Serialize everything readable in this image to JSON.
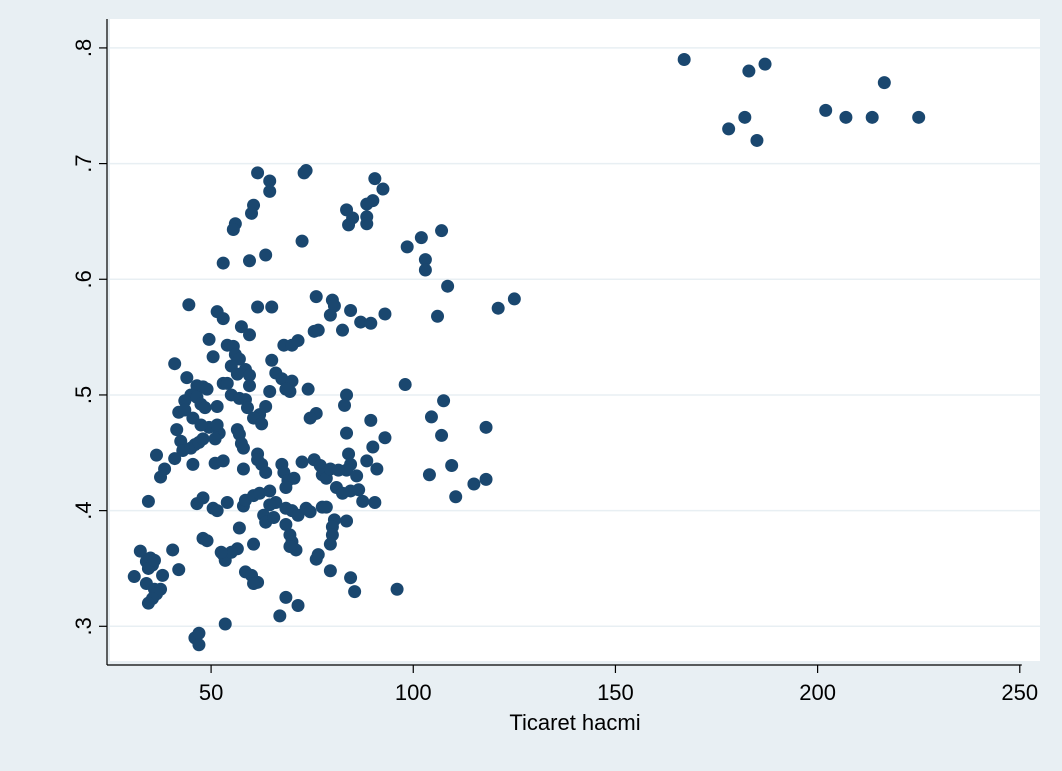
{
  "chart_data": {
    "type": "scatter",
    "title": "",
    "xlabel": "Ticaret hacmi",
    "ylabel": "",
    "xlim": [
      25,
      255
    ],
    "ylim": [
      0.27,
      0.825
    ],
    "x_ticks": [
      50,
      100,
      150,
      200,
      250
    ],
    "x_tick_labels": [
      "50",
      "100",
      "150",
      "200",
      "250"
    ],
    "y_ticks": [
      0.3,
      0.4,
      0.5,
      0.6,
      0.7,
      0.8
    ],
    "y_tick_labels": [
      ".3",
      ".4",
      ".5",
      ".6",
      ".7",
      ".8"
    ],
    "grid": true,
    "colors": {
      "background": "#e8eff3",
      "plot_area": "#ffffff",
      "marker": "#1a476f",
      "grid": "#e8eff3"
    },
    "series": [
      {
        "points": [
          [
            167,
            0.79
          ],
          [
            183,
            0.78
          ],
          [
            187,
            0.786
          ],
          [
            216.5,
            0.77
          ],
          [
            178,
            0.73
          ],
          [
            182,
            0.74
          ],
          [
            185,
            0.72
          ],
          [
            202,
            0.746
          ],
          [
            207,
            0.74
          ],
          [
            213.5,
            0.74
          ],
          [
            225,
            0.74
          ],
          [
            61.5,
            0.692
          ],
          [
            73.5,
            0.694
          ],
          [
            73,
            0.692
          ],
          [
            64.5,
            0.685
          ],
          [
            64.5,
            0.676
          ],
          [
            60.5,
            0.664
          ],
          [
            60,
            0.657
          ],
          [
            56,
            0.648
          ],
          [
            55.5,
            0.643
          ],
          [
            72.5,
            0.633
          ],
          [
            59.5,
            0.616
          ],
          [
            63.5,
            0.621
          ],
          [
            53,
            0.614
          ],
          [
            90.5,
            0.687
          ],
          [
            92.5,
            0.678
          ],
          [
            90,
            0.668
          ],
          [
            88.5,
            0.665
          ],
          [
            88.5,
            0.654
          ],
          [
            88.5,
            0.648
          ],
          [
            83.5,
            0.66
          ],
          [
            85,
            0.653
          ],
          [
            84,
            0.647
          ],
          [
            98.5,
            0.628
          ],
          [
            102,
            0.636
          ],
          [
            103,
            0.617
          ],
          [
            103,
            0.608
          ],
          [
            107,
            0.642
          ],
          [
            108.5,
            0.594
          ],
          [
            121,
            0.575
          ],
          [
            125,
            0.583
          ],
          [
            106,
            0.568
          ],
          [
            44.5,
            0.578
          ],
          [
            51.5,
            0.572
          ],
          [
            53,
            0.566
          ],
          [
            57.5,
            0.559
          ],
          [
            59.5,
            0.552
          ],
          [
            61.5,
            0.576
          ],
          [
            65,
            0.576
          ],
          [
            76,
            0.585
          ],
          [
            80,
            0.582
          ],
          [
            80.5,
            0.577
          ],
          [
            84.5,
            0.573
          ],
          [
            79.5,
            0.569
          ],
          [
            87,
            0.563
          ],
          [
            89.5,
            0.562
          ],
          [
            93,
            0.57
          ],
          [
            75.5,
            0.555
          ],
          [
            76.5,
            0.556
          ],
          [
            82.5,
            0.556
          ],
          [
            68,
            0.543
          ],
          [
            70,
            0.543
          ],
          [
            71.5,
            0.547
          ],
          [
            49.5,
            0.548
          ],
          [
            54,
            0.543
          ],
          [
            55.5,
            0.542
          ],
          [
            56,
            0.535
          ],
          [
            57,
            0.531
          ],
          [
            50.5,
            0.533
          ],
          [
            41,
            0.527
          ],
          [
            55,
            0.525
          ],
          [
            58.5,
            0.522
          ],
          [
            56.5,
            0.518
          ],
          [
            59.5,
            0.517
          ],
          [
            65,
            0.53
          ],
          [
            66,
            0.519
          ],
          [
            67.5,
            0.514
          ],
          [
            70,
            0.512
          ],
          [
            74,
            0.505
          ],
          [
            69.5,
            0.503
          ],
          [
            68.5,
            0.505
          ],
          [
            64.5,
            0.503
          ],
          [
            44,
            0.515
          ],
          [
            46.5,
            0.508
          ],
          [
            48,
            0.507
          ],
          [
            49,
            0.505
          ],
          [
            45,
            0.5
          ],
          [
            43.5,
            0.495
          ],
          [
            46.5,
            0.498
          ],
          [
            47.5,
            0.492
          ],
          [
            48.5,
            0.489
          ],
          [
            51.5,
            0.49
          ],
          [
            53,
            0.51
          ],
          [
            54,
            0.51
          ],
          [
            55,
            0.5
          ],
          [
            57,
            0.497
          ],
          [
            58.5,
            0.496
          ],
          [
            59,
            0.489
          ],
          [
            59.5,
            0.508
          ],
          [
            62,
            0.483
          ],
          [
            63.5,
            0.49
          ],
          [
            60.5,
            0.48
          ],
          [
            62.5,
            0.475
          ],
          [
            56.5,
            0.47
          ],
          [
            57,
            0.466
          ],
          [
            57.5,
            0.458
          ],
          [
            58,
            0.454
          ],
          [
            52,
            0.467
          ],
          [
            51,
            0.462
          ],
          [
            49.5,
            0.472
          ],
          [
            51.5,
            0.474
          ],
          [
            45.5,
            0.48
          ],
          [
            47.5,
            0.474
          ],
          [
            42,
            0.485
          ],
          [
            43.5,
            0.487
          ],
          [
            41.5,
            0.47
          ],
          [
            42.5,
            0.46
          ],
          [
            43,
            0.452
          ],
          [
            45,
            0.454
          ],
          [
            46,
            0.457
          ],
          [
            47,
            0.459
          ],
          [
            48,
            0.462
          ],
          [
            36.5,
            0.448
          ],
          [
            41,
            0.445
          ],
          [
            45.5,
            0.44
          ],
          [
            51,
            0.441
          ],
          [
            53,
            0.443
          ],
          [
            38.5,
            0.436
          ],
          [
            37.5,
            0.429
          ],
          [
            58,
            0.436
          ],
          [
            61.5,
            0.449
          ],
          [
            62.5,
            0.44
          ],
          [
            63.5,
            0.433
          ],
          [
            61.5,
            0.444
          ],
          [
            98,
            0.509
          ],
          [
            107.5,
            0.495
          ],
          [
            104.5,
            0.481
          ],
          [
            118,
            0.472
          ],
          [
            107,
            0.465
          ],
          [
            109.5,
            0.439
          ],
          [
            104,
            0.431
          ],
          [
            115,
            0.423
          ],
          [
            118,
            0.427
          ],
          [
            110.5,
            0.412
          ],
          [
            93,
            0.463
          ],
          [
            89.5,
            0.478
          ],
          [
            90,
            0.455
          ],
          [
            83.5,
            0.5
          ],
          [
            83,
            0.491
          ],
          [
            83.5,
            0.467
          ],
          [
            84,
            0.449
          ],
          [
            84.5,
            0.44
          ],
          [
            83.5,
            0.435
          ],
          [
            84.5,
            0.417
          ],
          [
            76,
            0.484
          ],
          [
            74.5,
            0.48
          ],
          [
            75.5,
            0.444
          ],
          [
            77,
            0.439
          ],
          [
            77.5,
            0.431
          ],
          [
            78.5,
            0.428
          ],
          [
            79.5,
            0.436
          ],
          [
            81.5,
            0.435
          ],
          [
            81,
            0.42
          ],
          [
            82.5,
            0.415
          ],
          [
            86,
            0.43
          ],
          [
            86.5,
            0.418
          ],
          [
            88.5,
            0.443
          ],
          [
            91,
            0.436
          ],
          [
            72.5,
            0.442
          ],
          [
            67.5,
            0.44
          ],
          [
            68,
            0.433
          ],
          [
            69,
            0.426
          ],
          [
            70.5,
            0.428
          ],
          [
            68.5,
            0.42
          ],
          [
            64.5,
            0.417
          ],
          [
            66,
            0.407
          ],
          [
            68.5,
            0.402
          ],
          [
            70,
            0.4
          ],
          [
            71.5,
            0.396
          ],
          [
            73.5,
            0.402
          ],
          [
            74.5,
            0.399
          ],
          [
            77.5,
            0.403
          ],
          [
            78.5,
            0.403
          ],
          [
            80.5,
            0.392
          ],
          [
            80,
            0.386
          ],
          [
            80,
            0.379
          ],
          [
            79.5,
            0.371
          ],
          [
            83.5,
            0.391
          ],
          [
            87.5,
            0.408
          ],
          [
            90.5,
            0.407
          ],
          [
            46.5,
            0.406
          ],
          [
            48,
            0.411
          ],
          [
            50.5,
            0.402
          ],
          [
            51.5,
            0.4
          ],
          [
            54,
            0.407
          ],
          [
            58,
            0.404
          ],
          [
            58.5,
            0.409
          ],
          [
            60.5,
            0.413
          ],
          [
            62,
            0.415
          ],
          [
            63,
            0.396
          ],
          [
            63.5,
            0.39
          ],
          [
            64.5,
            0.405
          ],
          [
            65.5,
            0.394
          ],
          [
            34.5,
            0.408
          ],
          [
            48,
            0.376
          ],
          [
            49,
            0.374
          ],
          [
            57,
            0.385
          ],
          [
            60.5,
            0.371
          ],
          [
            56.5,
            0.367
          ],
          [
            53,
            0.362
          ],
          [
            53.5,
            0.357
          ],
          [
            55,
            0.364
          ],
          [
            52.5,
            0.364
          ],
          [
            68.5,
            0.388
          ],
          [
            69.5,
            0.379
          ],
          [
            70,
            0.373
          ],
          [
            71,
            0.366
          ],
          [
            69.5,
            0.369
          ],
          [
            76.5,
            0.362
          ],
          [
            76,
            0.358
          ],
          [
            79.5,
            0.348
          ],
          [
            84.5,
            0.342
          ],
          [
            85.5,
            0.33
          ],
          [
            96,
            0.332
          ],
          [
            71.5,
            0.318
          ],
          [
            68.5,
            0.325
          ],
          [
            67,
            0.309
          ],
          [
            58.5,
            0.347
          ],
          [
            60,
            0.344
          ],
          [
            61.5,
            0.338
          ],
          [
            60.5,
            0.337
          ],
          [
            32.5,
            0.365
          ],
          [
            34,
            0.356
          ],
          [
            35,
            0.359
          ],
          [
            35.5,
            0.353
          ],
          [
            34.5,
            0.35
          ],
          [
            36,
            0.357
          ],
          [
            38,
            0.344
          ],
          [
            31,
            0.343
          ],
          [
            34,
            0.337
          ],
          [
            36,
            0.332
          ],
          [
            37.5,
            0.332
          ],
          [
            36.5,
            0.328
          ],
          [
            35.5,
            0.324
          ],
          [
            34.5,
            0.32
          ],
          [
            40.5,
            0.366
          ],
          [
            42,
            0.349
          ],
          [
            53.5,
            0.302
          ],
          [
            46,
            0.29
          ],
          [
            47,
            0.294
          ],
          [
            47,
            0.284
          ]
        ]
      }
    ]
  }
}
